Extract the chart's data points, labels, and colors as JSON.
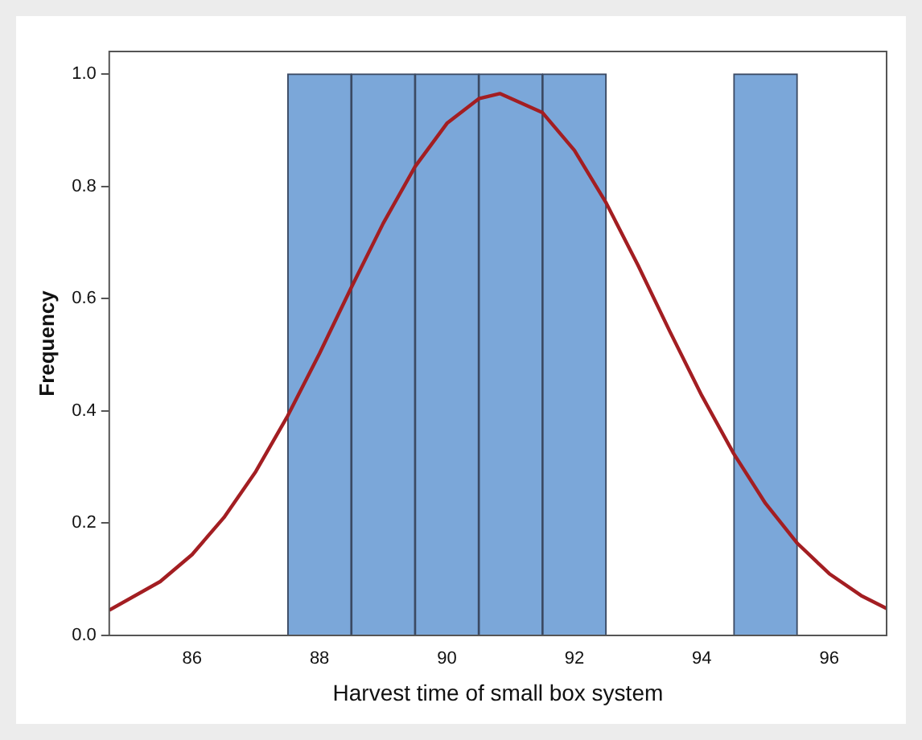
{
  "chart_data": {
    "type": "histogram",
    "xlabel": "Harvest time of small box system",
    "ylabel": "Frequency",
    "bins": [
      87.5,
      88.5,
      89.5,
      90.5,
      91.5,
      92.5,
      93.5,
      94.5,
      95.5
    ],
    "values": [
      1,
      1,
      1,
      1,
      1,
      0,
      0,
      1
    ],
    "color": "#7ba7d9",
    "series": [
      {
        "type": "line",
        "color": "#a31e22",
        "marker": "none",
        "x": [
          84.7,
          85.5,
          86,
          86.5,
          87,
          87.5,
          88,
          88.5,
          89,
          89.5,
          90,
          90.5,
          90.83,
          91.5,
          92,
          92.5,
          93,
          93.5,
          94,
          94.5,
          95,
          95.5,
          96,
          96.5,
          96.9
        ],
        "values": [
          0.045,
          0.096,
          0.144,
          0.21,
          0.292,
          0.391,
          0.502,
          0.62,
          0.734,
          0.835,
          0.912,
          0.956,
          0.965,
          0.931,
          0.864,
          0.77,
          0.659,
          0.541,
          0.427,
          0.324,
          0.235,
          0.164,
          0.11,
          0.071,
          0.048
        ]
      }
    ],
    "xlim": [
      84.7,
      96.9
    ],
    "xticks": [
      86,
      88,
      90,
      92,
      94,
      96
    ],
    "ylim": [
      0,
      1.04
    ],
    "yticks": [
      {
        "value": 0,
        "label": "0.0"
      },
      {
        "value": 0.2,
        "label": "0.2"
      },
      {
        "value": 0.4,
        "label": "0.4"
      },
      {
        "value": 0.6,
        "label": "0.6"
      },
      {
        "value": 0.8,
        "label": "0.8"
      },
      {
        "value": 1,
        "label": "1.0"
      }
    ],
    "grid": false,
    "legend": false
  }
}
